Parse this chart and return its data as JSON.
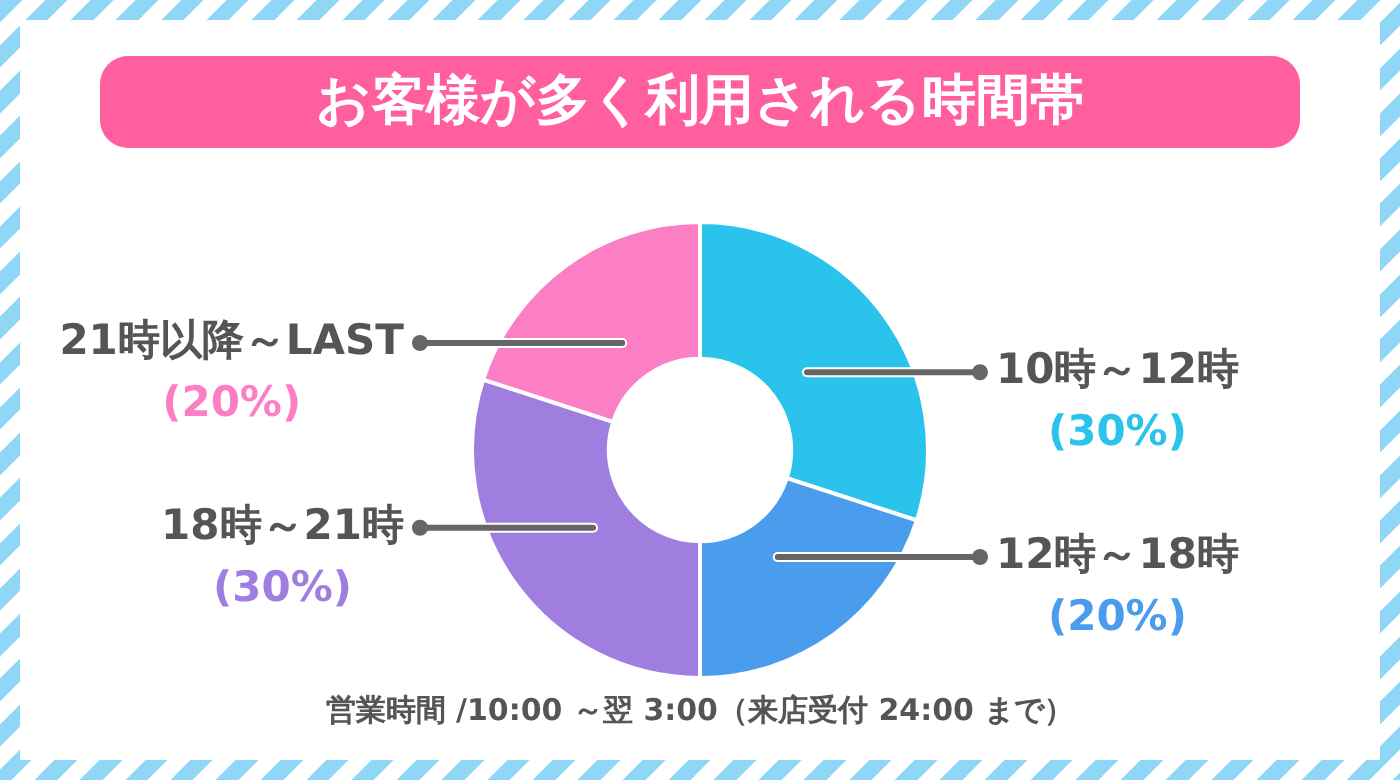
{
  "chart_data": {
    "type": "donut",
    "title": "お客様が多く利用される時間帯",
    "categories": [
      "10時～12時",
      "12時～18時",
      "18時～21時",
      "21時以降～LAST"
    ],
    "values": [
      30,
      20,
      30,
      20
    ],
    "colors": [
      "#29c3ec",
      "#4a9cec",
      "#a07ee0",
      "#fc7fc6"
    ],
    "value_labels": [
      "(30%)",
      "(20%)",
      "(30%)",
      "(20%)"
    ],
    "annotations": [
      "営業時間 /10:00 ～翌 3:00（来店受付 24:00 まで）"
    ],
    "legend": false
  }
}
